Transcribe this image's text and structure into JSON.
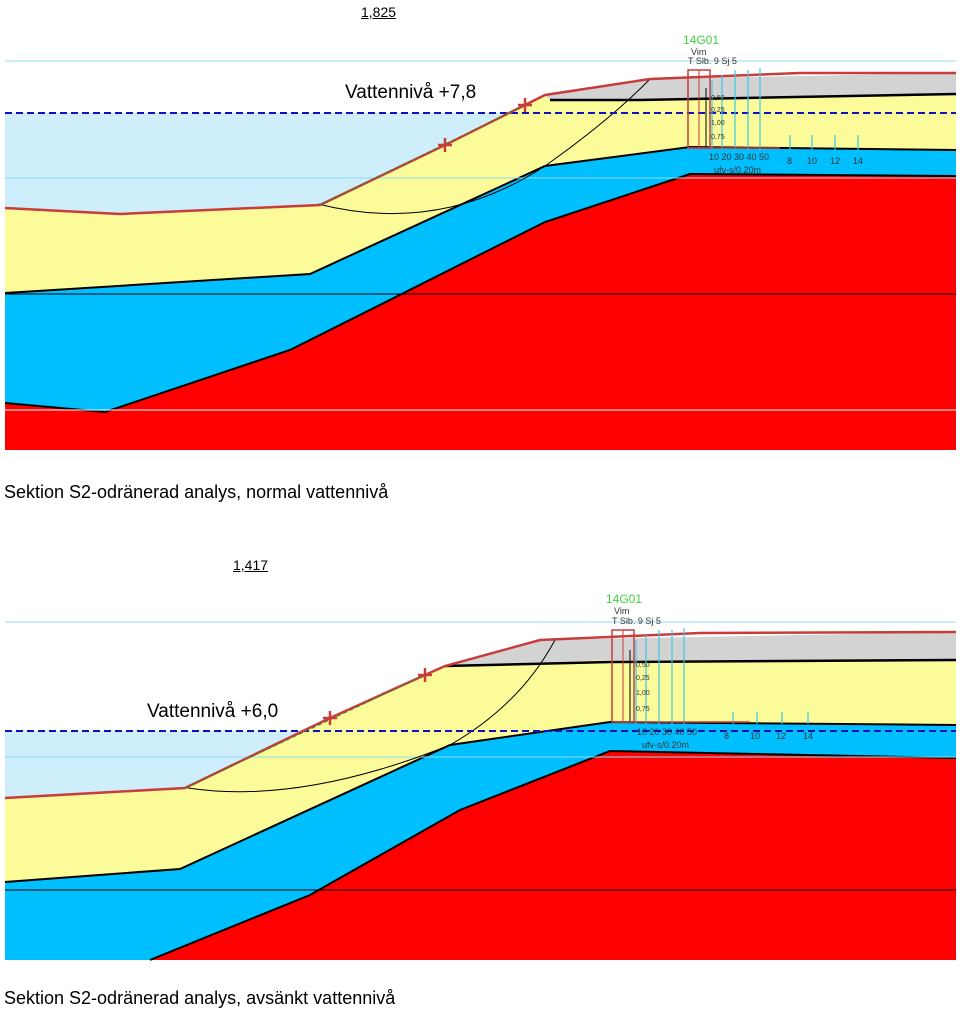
{
  "sections": [
    {
      "safety_factor": "1,825",
      "water_level_label": "Vattennivå +7,8",
      "caption": "Sektion S2-odränerad analys, normal vattennivå",
      "probe_id": "14G01",
      "probe_small": "Vim",
      "probe_header": "T Slb. 9 Sj 5",
      "axis_ticks": [
        "10 20 30 40 50",
        "8",
        "10",
        "12",
        "14"
      ],
      "axis_note": "ufv-s/0.20m",
      "depth_labels": [
        "0,50",
        "0,25",
        "1,00",
        "0,75"
      ]
    },
    {
      "safety_factor": "1,417",
      "water_level_label": "Vattennivå +6,0",
      "caption": "Sektion S2-odränerad analys, avsänkt vattennivå",
      "probe_id": "14G01",
      "probe_small": "Vim",
      "probe_header": "T Slb. 9 Sj 5",
      "axis_ticks": [
        "10 20 30 40 50",
        "8",
        "10",
        "12",
        "14"
      ],
      "axis_note": "ufv-s/0.20m",
      "depth_labels": [
        "0,50",
        "0,25",
        "1,00",
        "0,75"
      ]
    }
  ],
  "colors": {
    "water": "#cdeefa",
    "fill_clay": "#fbfb9a",
    "soft_clay": "#00bfff",
    "bedrock": "#ff0000",
    "surface_fill": "#d3d3d3",
    "survey_line": "#c83c3c",
    "water_line": "#1010c0",
    "probe_green": "#3cd23c",
    "probe_cyan": "#3cc8e6"
  }
}
